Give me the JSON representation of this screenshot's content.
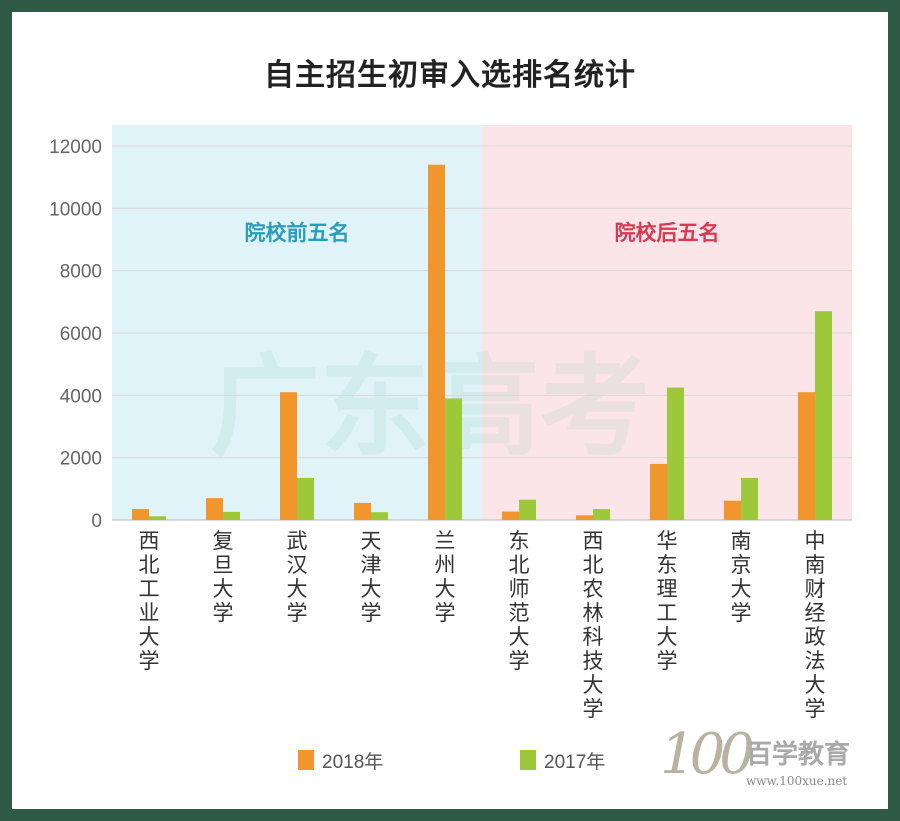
{
  "title": "自主招生初审入选排名统计",
  "watermark": {
    "text": "广东高考",
    "brand_logo_num": "100",
    "brand_logo_name": "百学教育",
    "brand_logo_url": "www.100xue.net"
  },
  "chart_data": {
    "type": "bar",
    "title": "自主招生初审入选排名统计",
    "categories": [
      "西北工业大学",
      "复旦大学",
      "武汉大学",
      "天津大学",
      "兰州大学",
      "东北师范大学",
      "西北农林科技大学",
      "华东理工大学",
      "南京大学",
      "中南财经政法大学"
    ],
    "series": [
      {
        "name": "2018年",
        "color": "#f0962c",
        "values": [
          350,
          700,
          4100,
          550,
          11400,
          270,
          150,
          1800,
          620,
          4100
        ]
      },
      {
        "name": "2017年",
        "color": "#9cc83a",
        "values": [
          120,
          260,
          1350,
          250,
          3900,
          650,
          350,
          4250,
          1350,
          6700
        ]
      }
    ],
    "ylim": [
      0,
      12000
    ],
    "yticks": [
      0,
      2000,
      4000,
      6000,
      8000,
      10000,
      12000
    ],
    "grid": true,
    "legend": "bottom",
    "bands": [
      {
        "label": "院校前五名",
        "range": [
          0,
          4
        ],
        "bg": "#dff3f8",
        "color": "#2a9db8"
      },
      {
        "label": "院校后五名",
        "range": [
          5,
          9
        ],
        "bg": "#fbe5e8",
        "color": "#d83a52"
      }
    ]
  }
}
